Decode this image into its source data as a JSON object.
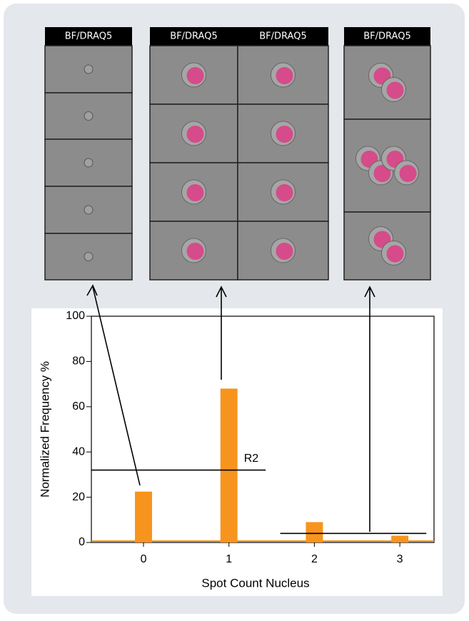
{
  "panels": [
    {
      "headers": [
        "BF/DRAQ5"
      ]
    },
    {
      "headers": [
        "BF/DRAQ5",
        "BF/DRAQ5"
      ]
    },
    {
      "headers": [
        "BF/DRAQ5"
      ]
    }
  ],
  "chart_data": {
    "type": "bar",
    "x": [
      0,
      1,
      2,
      3
    ],
    "values": [
      22.5,
      68,
      9,
      3
    ],
    "color": "#f7941d",
    "xlim": [
      -0.61,
      3.4
    ],
    "xticks": [
      0,
      1,
      2,
      3
    ],
    "ylim": [
      0,
      100
    ],
    "yticks": [
      0,
      20,
      40,
      60,
      80,
      100
    ],
    "xlabel": "Spot Count Nucleus",
    "ylabel": "Normalized Frequency %",
    "gates": [
      {
        "label": "R2",
        "y": 32,
        "x": [
          -0.61,
          1.43
        ]
      },
      {
        "y": 4,
        "x": [
          1.6,
          3.31
        ]
      }
    ]
  }
}
